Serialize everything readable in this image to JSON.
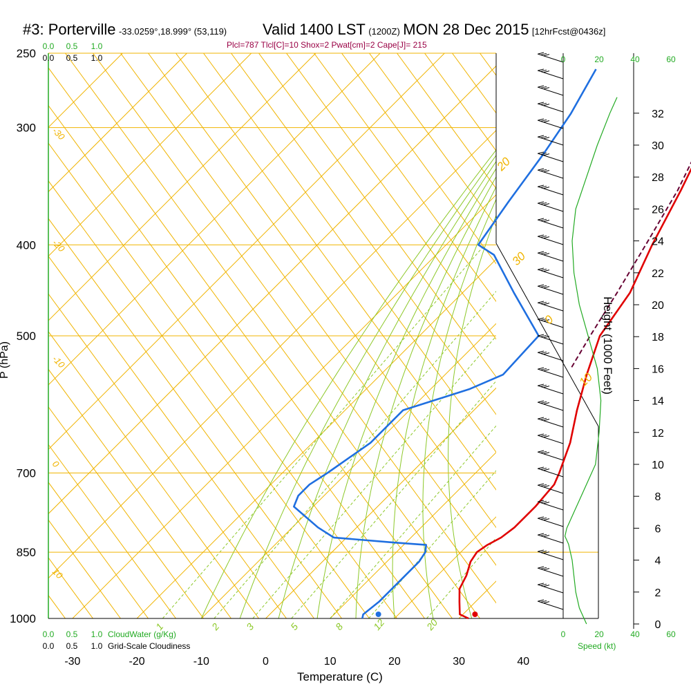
{
  "header": {
    "station": "#3: Porterville",
    "coords": "-33.0259°,18.999° (53,119)",
    "valid": "Valid 1400 LST",
    "utc": "(1200Z)",
    "date": "MON 28 Dec 2015",
    "forecast": "[12hrFcst@0436z]"
  },
  "params_line": "Plcl=787 Tlcl[C]=10 Shox=2 Pwat[cm]=2 Cape[J]= 215",
  "colors": {
    "temperature": "#e00000",
    "dewpoint": "#1f6fe0",
    "parcel": "#660033",
    "isotherm": "#f0b400",
    "mixing_ratio": "#8cc828",
    "cloud_scale": "#22aa22",
    "axes": "#000000"
  },
  "chart_data": {
    "type": "line",
    "title": "",
    "xlabel": "Temperature (C)",
    "ylabel": "P (hPa)",
    "y2label": "Height (1000 Feet)",
    "xlim": [
      -30,
      40
    ],
    "ylim": [
      1000,
      250
    ],
    "log_pressure_axis": true,
    "x_ticks": [
      "-30",
      "-20",
      "-10",
      "0",
      "10",
      "20",
      "30",
      "40"
    ],
    "pressure_ticks": [
      "250",
      "300",
      "400",
      "500",
      "700",
      "850",
      "1000"
    ],
    "height_ticks": [
      "0",
      "2",
      "4",
      "6",
      "8",
      "10",
      "12",
      "14",
      "16",
      "18",
      "20",
      "22",
      "24",
      "26",
      "28",
      "30",
      "32"
    ],
    "isotherm_labels": [
      "-30",
      "-20",
      "-10",
      "0",
      "10",
      "20",
      "30",
      "0",
      "10"
    ],
    "mixing_ratio_labels": [
      "1",
      "2",
      "3",
      "5",
      "8",
      "12",
      "20"
    ],
    "cloud_scale_labels": [
      "0.0",
      "0.5",
      "1.0"
    ],
    "cloud_scale_caption": "CloudWater (g/Kg)",
    "cloudiness_scale_labels": [
      "0.0",
      "0.5",
      "1.0"
    ],
    "cloudiness_caption": "Grid-Scale Cloudiness",
    "speed_ticks": [
      "0",
      "20",
      "40",
      "60"
    ],
    "speed_caption": "Speed (kt)",
    "series": [
      {
        "points": [
          [
            1000,
            31.5
          ],
          [
            990,
            29.5
          ],
          [
            960,
            27.5
          ],
          [
            930,
            25.5
          ],
          [
            900,
            24.5
          ],
          [
            870,
            23
          ],
          [
            850,
            22.5
          ],
          [
            835,
            23
          ],
          [
            820,
            24
          ],
          [
            800,
            24.5
          ],
          [
            760,
            24.5
          ],
          [
            720,
            24
          ],
          [
            700,
            23
          ],
          [
            650,
            20
          ],
          [
            600,
            16
          ],
          [
            550,
            12
          ],
          [
            500,
            8
          ],
          [
            450,
            6
          ],
          [
            400,
            2
          ],
          [
            350,
            -2
          ],
          [
            300,
            -7
          ],
          [
            260,
            -12
          ]
        ]
      },
      {
        "points": [
          [
            1000,
            15
          ],
          [
            990,
            14.5
          ],
          [
            960,
            15
          ],
          [
            900,
            15
          ],
          [
            870,
            15
          ],
          [
            850,
            14.5
          ],
          [
            835,
            13.5
          ],
          [
            830,
            8
          ],
          [
            820,
            -2
          ],
          [
            800,
            -6
          ],
          [
            760,
            -13
          ],
          [
            740,
            -14
          ],
          [
            720,
            -14
          ],
          [
            700,
            -13
          ],
          [
            650,
            -11
          ],
          [
            600,
            -11
          ],
          [
            570,
            -4
          ],
          [
            550,
            -1
          ],
          [
            500,
            -1.5
          ],
          [
            450,
            -12
          ],
          [
            410,
            -21
          ],
          [
            400,
            -25
          ],
          [
            360,
            -27
          ],
          [
            320,
            -29
          ],
          [
            290,
            -31
          ],
          [
            260,
            -34
          ]
        ]
      },
      {
        "points": [
          [
            540,
            8.5
          ],
          [
            500,
            6.5
          ],
          [
            450,
            4
          ],
          [
            400,
            1
          ],
          [
            350,
            -2.5
          ],
          [
            300,
            -7.5
          ]
        ]
      }
    ],
    "surface_points": [
      {
        "pressure": 1000,
        "temperature": 32.5
      },
      {
        "pressure": 1000,
        "dewpoint": 17.5
      }
    ],
    "wind_speed_profile_kt": [
      [
        0,
        13
      ],
      [
        1,
        9
      ],
      [
        2,
        7
      ],
      [
        3,
        6
      ],
      [
        4,
        5
      ],
      [
        5,
        3
      ],
      [
        5.5,
        1
      ],
      [
        6,
        2
      ],
      [
        7,
        6
      ],
      [
        8,
        10
      ],
      [
        9,
        14
      ],
      [
        10,
        18
      ],
      [
        12,
        20
      ],
      [
        14,
        21
      ],
      [
        16,
        19
      ],
      [
        18,
        14
      ],
      [
        20,
        9
      ],
      [
        22,
        6
      ],
      [
        24,
        5
      ],
      [
        26,
        7
      ],
      [
        28,
        13
      ],
      [
        30,
        19
      ],
      [
        32,
        26
      ],
      [
        33,
        30
      ]
    ]
  }
}
